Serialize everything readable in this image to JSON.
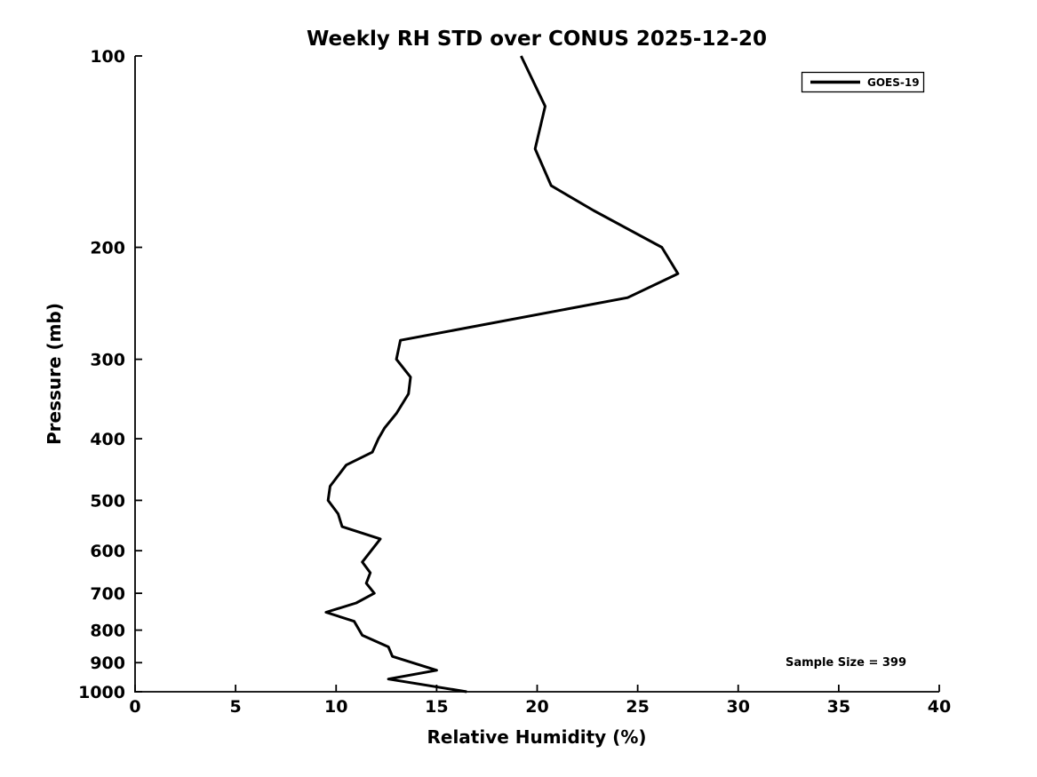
{
  "title": "Weekly RH STD over CONUS 2025-12-20",
  "annotation_text": "Sample Size = 399",
  "colors": {
    "line": "#000000",
    "text": "#000000",
    "background": "#ffffff"
  },
  "chart_data": {
    "type": "line",
    "title": "Weekly RH STD over CONUS 2025-12-20",
    "xlabel": "Relative Humidity (%)",
    "ylabel": "Pressure (mb)",
    "xlim": [
      0,
      40
    ],
    "xticks": [
      0,
      5,
      10,
      15,
      20,
      25,
      30,
      35,
      40
    ],
    "ylim": [
      100,
      1000
    ],
    "yscale": "log",
    "y_inverted": true,
    "yticks": [
      100,
      200,
      300,
      400,
      500,
      600,
      700,
      800,
      900,
      1000
    ],
    "grid": false,
    "annotation": "Sample Size = 399",
    "legend": {
      "position": "upper right",
      "entries": [
        {
          "label": "GOES-19",
          "color": "#000000"
        }
      ]
    },
    "series": [
      {
        "name": "GOES-19",
        "color": "#000000",
        "points_format": [
          "pressure_mb",
          "rh_std_percent"
        ],
        "points": [
          [
            100,
            19.2
          ],
          [
            120,
            20.4
          ],
          [
            140,
            19.9
          ],
          [
            160,
            20.7
          ],
          [
            175,
            22.8
          ],
          [
            200,
            26.2
          ],
          [
            220,
            27.0
          ],
          [
            240,
            24.5
          ],
          [
            280,
            13.2
          ],
          [
            300,
            13.0
          ],
          [
            320,
            13.7
          ],
          [
            340,
            13.6
          ],
          [
            365,
            13.0
          ],
          [
            385,
            12.4
          ],
          [
            400,
            12.1
          ],
          [
            420,
            11.8
          ],
          [
            440,
            10.5
          ],
          [
            475,
            9.7
          ],
          [
            500,
            9.6
          ],
          [
            525,
            10.1
          ],
          [
            550,
            10.3
          ],
          [
            575,
            12.2
          ],
          [
            625,
            11.3
          ],
          [
            650,
            11.7
          ],
          [
            675,
            11.5
          ],
          [
            700,
            11.9
          ],
          [
            725,
            11.0
          ],
          [
            750,
            9.5
          ],
          [
            775,
            10.9
          ],
          [
            815,
            11.3
          ],
          [
            850,
            12.6
          ],
          [
            880,
            12.8
          ],
          [
            925,
            15.0
          ],
          [
            955,
            12.6
          ],
          [
            1000,
            16.5
          ]
        ]
      }
    ]
  }
}
